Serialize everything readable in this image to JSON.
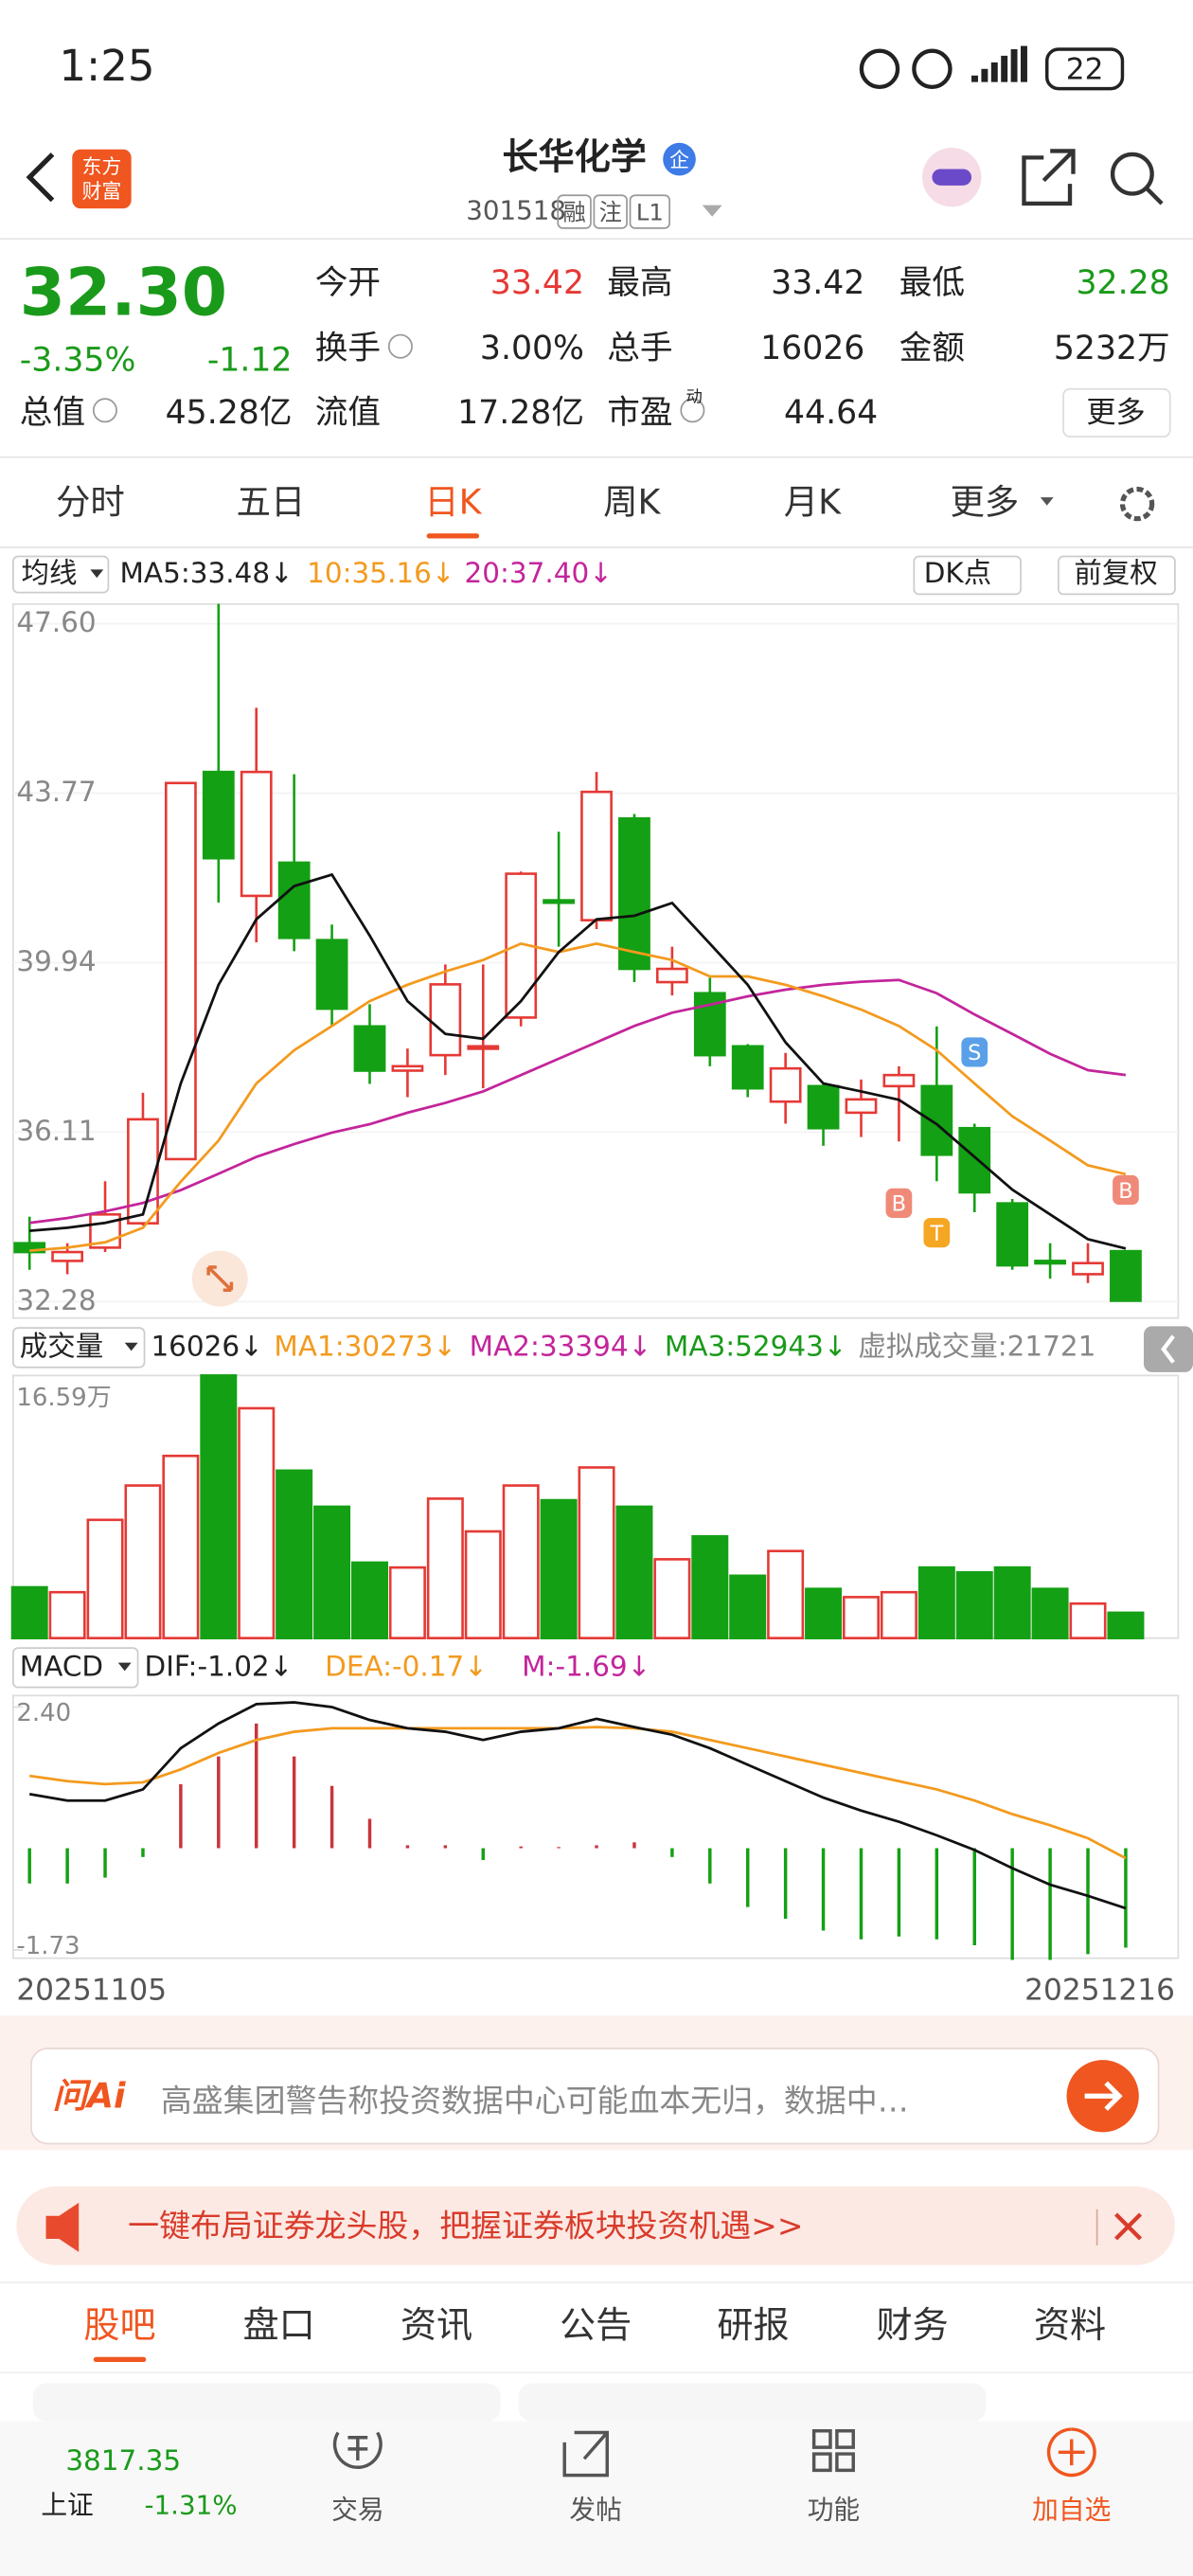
{
  "status_bar": {
    "time": "1:25",
    "battery": "22"
  },
  "header": {
    "logo": [
      "东方",
      "财富"
    ],
    "name": "长华化学",
    "badge": "企",
    "code": "301518",
    "tags": [
      "融",
      "注",
      "L1"
    ]
  },
  "quote": {
    "price": "32.30",
    "change_pct": "-3.35%",
    "change": "-1.12",
    "fields": [
      {
        "label": "今开",
        "value": "33.42"
      },
      {
        "label": "最高",
        "value": "33.42"
      },
      {
        "label": "最低",
        "value": "32.28"
      },
      {
        "label": "换手",
        "value": "3.00%"
      },
      {
        "label": "总手",
        "value": "16026"
      },
      {
        "label": "金额",
        "value": "5232万"
      },
      {
        "label": "总值",
        "value": "45.28亿"
      },
      {
        "label": "流值",
        "value": "17.28亿"
      },
      {
        "label": "市盈",
        "value": "44.64"
      }
    ],
    "pe_note": "动",
    "more": "更多"
  },
  "tabs": {
    "items": [
      "分时",
      "五日",
      "日K",
      "周K",
      "月K",
      "更多"
    ],
    "active": 2
  },
  "kline": {
    "indicator": "均线",
    "ma_labels": [
      "MA5:33.48↓",
      "10:35.16↓",
      "20:37.40↓"
    ],
    "dk": "DK点",
    "adjust": "前复权",
    "ylim": [
      32.28,
      47.6
    ],
    "yticks": [
      {
        "value": 47.6,
        "label": "47.60"
      },
      {
        "value": 43.77,
        "label": "43.77"
      },
      {
        "value": 39.94,
        "label": "39.94"
      },
      {
        "value": 36.11,
        "label": "36.11"
      },
      {
        "value": 32.28,
        "label": "32.28"
      }
    ],
    "candles": [
      {
        "o": 33.6,
        "h": 34.2,
        "l": 33.0,
        "c": 33.4
      },
      {
        "o": 33.2,
        "h": 33.6,
        "l": 32.9,
        "c": 33.4
      },
      {
        "o": 33.5,
        "h": 35.0,
        "l": 33.4,
        "c": 34.25
      },
      {
        "o": 34.05,
        "h": 37.0,
        "l": 34.0,
        "c": 36.4
      },
      {
        "o": 35.5,
        "h": 44.0,
        "l": 35.5,
        "c": 44.0
      },
      {
        "o": 44.25,
        "h": 48.05,
        "l": 41.3,
        "c": 42.3
      },
      {
        "o": 41.45,
        "h": 45.7,
        "l": 40.4,
        "c": 44.25
      },
      {
        "o": 42.2,
        "h": 44.2,
        "l": 40.2,
        "c": 40.5
      },
      {
        "o": 40.45,
        "h": 40.8,
        "l": 38.5,
        "c": 38.9
      },
      {
        "o": 38.5,
        "h": 39.0,
        "l": 37.2,
        "c": 37.5
      },
      {
        "o": 37.5,
        "h": 38.0,
        "l": 36.9,
        "c": 37.6
      },
      {
        "o": 37.85,
        "h": 39.9,
        "l": 37.4,
        "c": 39.45
      },
      {
        "o": 38.0,
        "h": 39.9,
        "l": 37.1,
        "c": 38.05
      },
      {
        "o": 38.7,
        "h": 42.0,
        "l": 38.5,
        "c": 41.95
      },
      {
        "o": 41.35,
        "h": 42.9,
        "l": 40.3,
        "c": 41.3
      },
      {
        "o": 40.9,
        "h": 44.25,
        "l": 40.7,
        "c": 43.8
      },
      {
        "o": 43.2,
        "h": 43.3,
        "l": 39.5,
        "c": 39.8
      },
      {
        "o": 39.5,
        "h": 40.3,
        "l": 39.2,
        "c": 39.8
      },
      {
        "o": 39.25,
        "h": 39.6,
        "l": 37.6,
        "c": 37.85
      },
      {
        "o": 38.05,
        "h": 38.1,
        "l": 36.9,
        "c": 37.1
      },
      {
        "o": 36.8,
        "h": 37.9,
        "l": 36.3,
        "c": 37.55
      },
      {
        "o": 37.15,
        "h": 37.2,
        "l": 35.8,
        "c": 36.2
      },
      {
        "o": 36.55,
        "h": 37.3,
        "l": 36.0,
        "c": 36.85
      },
      {
        "o": 37.15,
        "h": 37.6,
        "l": 35.9,
        "c": 37.4
      },
      {
        "o": 37.15,
        "h": 38.5,
        "l": 35.0,
        "c": 35.6
      },
      {
        "o": 36.2,
        "h": 36.3,
        "l": 34.3,
        "c": 34.75
      },
      {
        "o": 34.5,
        "h": 34.6,
        "l": 33.0,
        "c": 33.1
      },
      {
        "o": 33.2,
        "h": 33.6,
        "l": 32.8,
        "c": 33.15
      },
      {
        "o": 32.9,
        "h": 33.6,
        "l": 32.7,
        "c": 33.15
      },
      {
        "o": 33.42,
        "h": 33.42,
        "l": 32.28,
        "c": 32.3
      }
    ],
    "ma5": [
      33.88,
      33.95,
      34.06,
      34.25,
      37.21,
      39.44,
      40.92,
      41.67,
      41.93,
      40.55,
      39.07,
      38.33,
      38.22,
      39.07,
      40.18,
      40.92,
      41.0,
      41.29,
      40.37,
      39.44,
      38.14,
      37.21,
      37.03,
      36.84,
      36.29,
      35.55,
      34.81,
      34.25,
      33.69,
      33.48
    ],
    "ma10": [
      33.43,
      33.5,
      33.62,
      33.95,
      34.99,
      35.92,
      37.21,
      37.96,
      38.51,
      39.07,
      39.44,
      39.74,
      40.0,
      40.37,
      40.18,
      40.37,
      40.18,
      40.0,
      39.63,
      39.63,
      39.44,
      39.18,
      38.88,
      38.51,
      37.96,
      37.21,
      36.47,
      35.92,
      35.36,
      35.16
    ],
    "ma20": [
      34.06,
      34.17,
      34.32,
      34.51,
      34.8,
      35.17,
      35.55,
      35.84,
      36.1,
      36.29,
      36.55,
      36.77,
      37.03,
      37.4,
      37.77,
      38.14,
      38.51,
      38.81,
      38.99,
      39.18,
      39.33,
      39.44,
      39.51,
      39.55,
      39.25,
      38.77,
      38.33,
      37.88,
      37.51,
      37.4
    ],
    "markers": [
      "B",
      "S",
      "T",
      "B"
    ]
  },
  "volume": {
    "indicator": "成交量",
    "labels": [
      "16026↓",
      "MA1:30273↓",
      "MA2:33394↓",
      "MA3:52943↓",
      "虚拟成交量:21721"
    ],
    "ylim": [
      0,
      165900
    ],
    "yticks": [
      {
        "value": 165900,
        "label": "16.59万"
      }
    ],
    "values": [
      32100,
      29000,
      74700,
      96400,
      115100,
      165900,
      145200,
      105800,
      83000,
      47700,
      44600,
      88100,
      67400,
      96400,
      87100,
      107800,
      83000,
      49800,
      64300,
      39400,
      55000,
      31100,
      25900,
      29000,
      44600,
      41500,
      44600,
      31100,
      21800,
      16026
    ]
  },
  "macd": {
    "indicator": "MACD",
    "labels": [
      "DIF:-1.02↓",
      "DEA:-0.17↓",
      "M:-1.69↓"
    ],
    "ylim": [
      -1.73,
      2.4
    ],
    "yticks": [
      {
        "value": 2.4,
        "label": "2.40"
      },
      {
        "value": -1.73,
        "label": "-1.73"
      }
    ],
    "hist": [
      -0.6,
      -0.6,
      -0.5,
      -0.15,
      1.09,
      1.56,
      2.12,
      1.56,
      1.06,
      0.5,
      0.05,
      0.05,
      -0.2,
      0.03,
      0.02,
      0.05,
      0.1,
      -0.15,
      -0.6,
      -1.0,
      -1.2,
      -1.4,
      -1.55,
      -1.5,
      -1.55,
      -1.65,
      -1.9,
      -1.9,
      -1.8,
      -1.69
    ],
    "dif": [
      0.92,
      0.81,
      0.81,
      1.0,
      1.7,
      2.12,
      2.45,
      2.48,
      2.4,
      2.18,
      2.04,
      1.98,
      1.84,
      1.98,
      2.04,
      2.2,
      2.06,
      1.93,
      1.7,
      1.42,
      1.14,
      0.86,
      0.64,
      0.45,
      0.22,
      -0.03,
      -0.34,
      -0.62,
      -0.81,
      -1.02
    ],
    "dea": [
      1.23,
      1.14,
      1.09,
      1.12,
      1.34,
      1.62,
      1.84,
      1.98,
      2.04,
      2.04,
      2.04,
      2.04,
      2.04,
      2.04,
      2.04,
      2.06,
      2.04,
      1.98,
      1.84,
      1.7,
      1.56,
      1.42,
      1.28,
      1.14,
      1.0,
      0.81,
      0.58,
      0.39,
      0.17,
      -0.17
    ]
  },
  "dates": [
    "20251105",
    "20251216"
  ],
  "ai": {
    "logo": "问Ai",
    "text": "高盛集团警告称投资数据中心可能血本无归，数据中…"
  },
  "banner": "一键布局证券龙头股，把握证券板块投资机遇>>",
  "bottom_tabs": {
    "items": [
      "股吧",
      "盘口",
      "资讯",
      "公告",
      "研报",
      "财务",
      "资料"
    ],
    "active": 0
  },
  "nav": {
    "index_value": "3817.35",
    "index_name": "上证",
    "index_change": "-1.31%",
    "items": [
      "交易",
      "发帖",
      "功能",
      "加自选"
    ]
  }
}
